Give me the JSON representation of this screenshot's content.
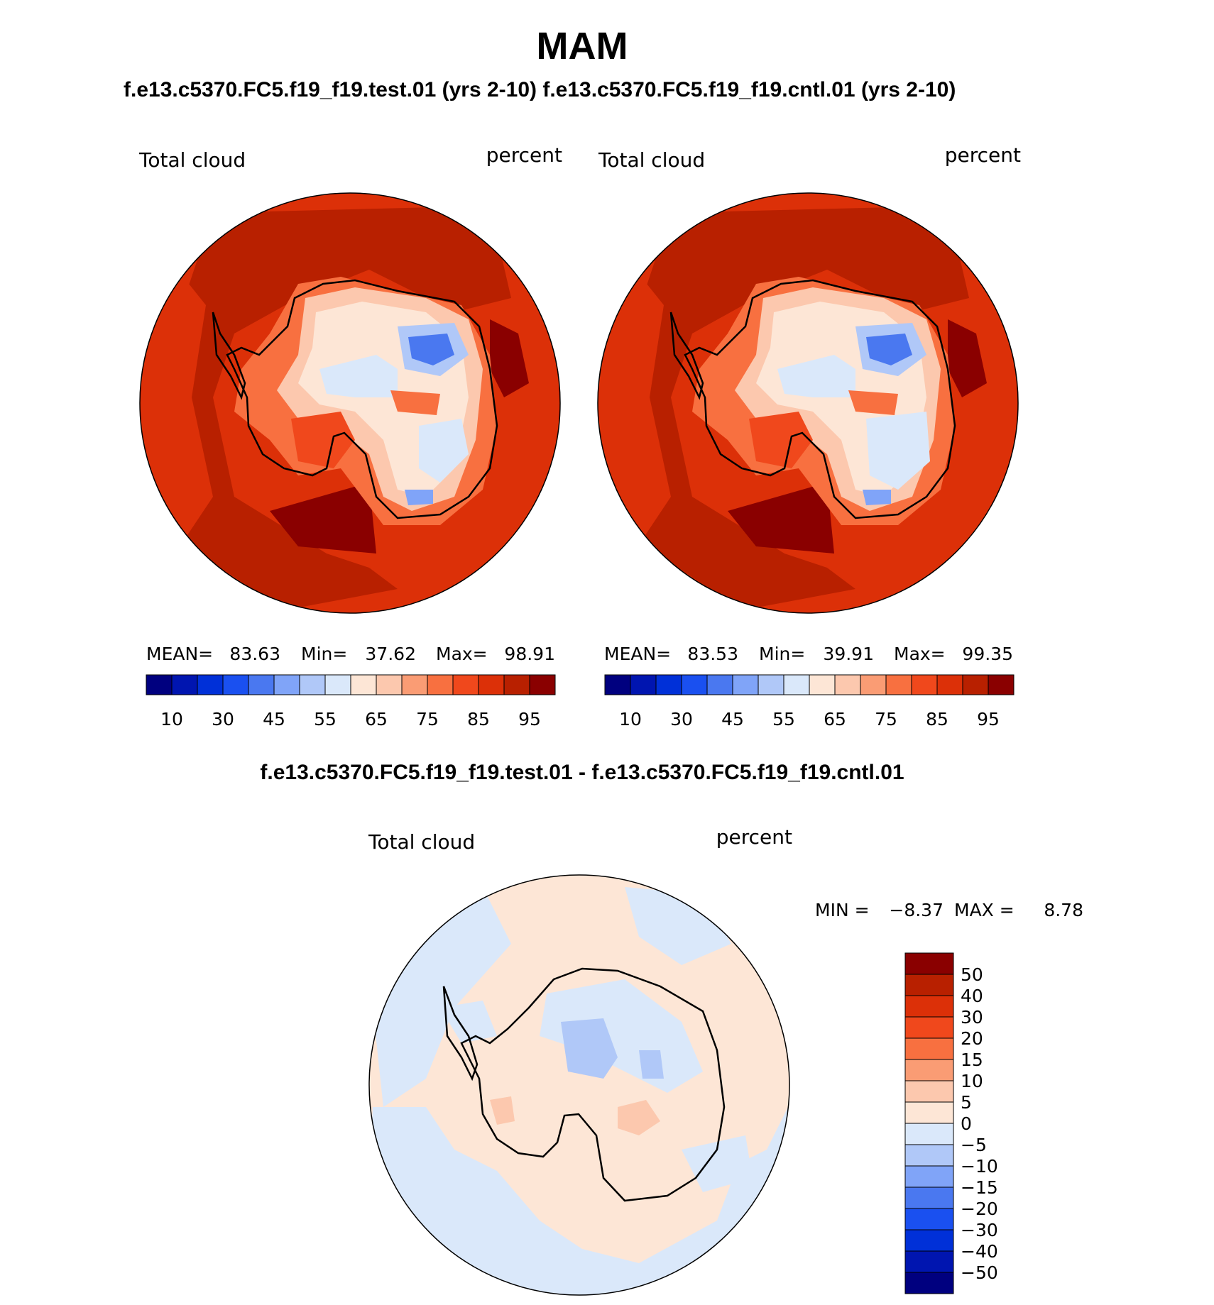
{
  "title": "MAM",
  "case_header": "f.e13.c5370.FC5.f19_f19.test.01 (yrs 2-10) f.e13.c5370.FC5.f19_f19.cntl.01 (yrs 2-10)",
  "diff_header": "f.e13.c5370.FC5.f19_f19.test.01 - f.e13.c5370.FC5.f19_f19.cntl.01",
  "colors": {
    "scale": [
      "#00007f",
      "#0015b0",
      "#0030d8",
      "#1a50f0",
      "#4a78f0",
      "#80a4f8",
      "#b0c8f8",
      "#dae8fa",
      "#fde6d6",
      "#fcc8ae",
      "#fa9c74",
      "#f87040",
      "#f0481c",
      "#dc3008",
      "#b82000",
      "#8a0000"
    ],
    "diff_scale": [
      "#00007f",
      "#0015b0",
      "#0030d8",
      "#1a50f0",
      "#4a78f0",
      "#80a4f8",
      "#b0c8f8",
      "#dae8fa",
      "#fde6d6",
      "#fcc8ae",
      "#fa9c74",
      "#f87040",
      "#f0481c",
      "#dc3008",
      "#b82000",
      "#8a0000"
    ]
  },
  "chart_data": [
    {
      "type": "heatmap",
      "name": "test",
      "left_label": "Total cloud",
      "right_label": "percent",
      "stats": {
        "mean_label": "MEAN=",
        "mean": "83.63",
        "min_label": "Min=",
        "min": "37.62",
        "max_label": "Max=",
        "max": "98.91"
      },
      "colorbar_ticks": [
        "10",
        "30",
        "45",
        "55",
        "65",
        "75",
        "85",
        "95"
      ],
      "projection": "south polar stereographic"
    },
    {
      "type": "heatmap",
      "name": "cntl",
      "left_label": "Total cloud",
      "right_label": "percent",
      "stats": {
        "mean_label": "MEAN=",
        "mean": "83.53",
        "min_label": "Min=",
        "min": "39.91",
        "max_label": "Max=",
        "max": "99.35"
      },
      "colorbar_ticks": [
        "10",
        "30",
        "45",
        "55",
        "65",
        "75",
        "85",
        "95"
      ],
      "projection": "south polar stereographic"
    },
    {
      "type": "heatmap",
      "name": "difference",
      "left_label": "Total cloud",
      "right_label": "percent",
      "stats": {
        "min_label": "MIN =",
        "min": "−8.37",
        "max_label": "MAX =",
        "max": "8.78"
      },
      "colorbar_ticks": [
        "50",
        "40",
        "30",
        "20",
        "15",
        "10",
        "5",
        "0",
        "−5",
        "−10",
        "−15",
        "−20",
        "−30",
        "−40",
        "−50"
      ],
      "projection": "south polar stereographic"
    }
  ]
}
